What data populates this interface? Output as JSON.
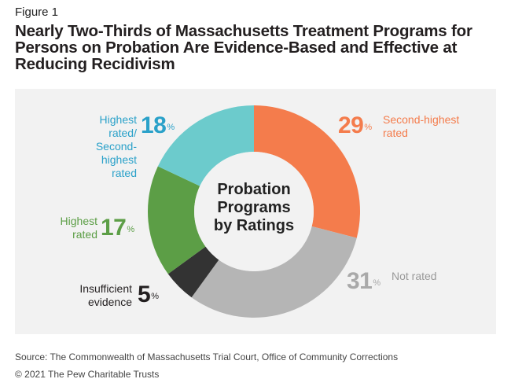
{
  "figure_label": "Figure 1",
  "title": "Nearly Two-Thirds of Massachusetts Treatment Programs for Persons on Probation Are Evidence-Based and Effective at Reducing Recidivism",
  "chart_data": {
    "type": "pie",
    "donut": true,
    "center_label": [
      "Probation",
      "Programs",
      "by Ratings"
    ],
    "slices": [
      {
        "label": "Second-highest rated",
        "value": 29,
        "color": "#f47c4c"
      },
      {
        "label": "Not rated",
        "value": 31,
        "color": "#b5b5b5"
      },
      {
        "label": "Insufficient evidence",
        "value": 5,
        "color": "#333333"
      },
      {
        "label": "Highest rated",
        "value": 17,
        "color": "#5c9e46"
      },
      {
        "label": "Highest rated/ Second-highest rated",
        "value": 18,
        "color": "#6ccbcc"
      }
    ],
    "pct_symbol": "%"
  },
  "labels": {
    "s29": {
      "line1": "Second-highest",
      "line2": "rated"
    },
    "s31": {
      "line1": "Not rated"
    },
    "s5": {
      "line1": "Insufficient",
      "line2": "evidence"
    },
    "s17": {
      "line1": "Highest",
      "line2": "rated"
    },
    "s18": {
      "line1": "Highest rated/",
      "line2": "Second-highest",
      "line3": "rated"
    }
  },
  "pct_text": {
    "s29": "29",
    "s31": "31",
    "s5": "5",
    "s17": "17",
    "s18": "18"
  },
  "colors": {
    "teal_text": "#2aa1c9",
    "orange_text": "#f47c4c",
    "green_text": "#5c9e46",
    "grey_text": "#a9a9a9",
    "dark_text": "#231f20"
  },
  "source": "Source: The Commonwealth of Massachusetts Trial Court, Office of Community Corrections",
  "copyright": "© 2021 The Pew Charitable Trusts"
}
